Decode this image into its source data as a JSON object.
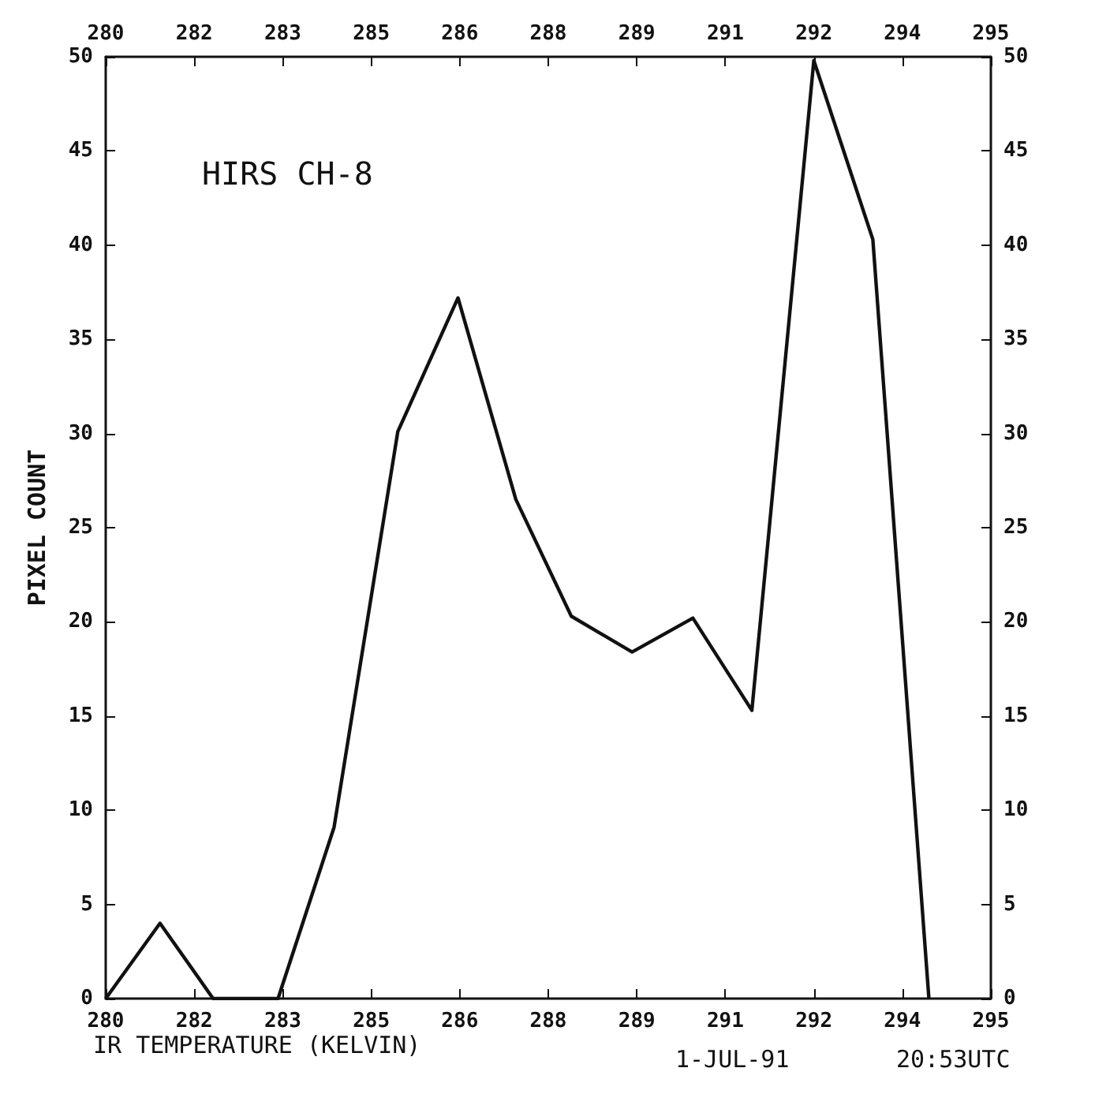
{
  "chart_data": {
    "type": "line",
    "xlabel": "IR TEMPERATURE (KELVIN)",
    "ylabel": "PIXEL COUNT",
    "annotations": [
      "HIRS CH-8",
      "1-JUL-91",
      "20:53UTC"
    ],
    "x": [
      280,
      280.92,
      281.82,
      282.92,
      283.87,
      284.95,
      285.97,
      286.95,
      287.89,
      288.92,
      289.95,
      290.95,
      292.0,
      293.0,
      293.95
    ],
    "series": [
      {
        "color": "#111111",
        "values": [
          0,
          4,
          0,
          0,
          9.1,
          30.1,
          37.2,
          26.5,
          20.3,
          18.4,
          20.2,
          15.3,
          49.8,
          40.3,
          0
        ]
      }
    ],
    "xlim": [
      280,
      295
    ],
    "xticks": [
      280,
      {
        "value": 281.5,
        "label": "282"
      },
      283,
      {
        "value": 284.5,
        "label": "285"
      },
      286,
      {
        "value": 287.5,
        "label": "288"
      },
      289,
      {
        "value": 290.5,
        "label": "291"
      },
      292,
      {
        "value": 293.5,
        "label": "294"
      },
      295
    ],
    "x2lim": [
      280,
      295
    ],
    "x2ticks": [
      280,
      {
        "value": 281.5,
        "label": "282"
      },
      283,
      {
        "value": 284.5,
        "label": "285"
      },
      286,
      {
        "value": 287.5,
        "label": "288"
      },
      289,
      {
        "value": 290.5,
        "label": "291"
      },
      292,
      {
        "value": 293.5,
        "label": "294"
      },
      295
    ],
    "ylim": [
      0,
      50
    ],
    "yticks": [
      0,
      5,
      10,
      15,
      20,
      25,
      30,
      35,
      40,
      45,
      50
    ],
    "y2lim": [
      0,
      50
    ],
    "y2ticks": [
      0,
      5,
      10,
      15,
      20,
      25,
      30,
      35,
      40,
      45,
      50
    ],
    "grid": false,
    "marker": "none",
    "line_style": "solid"
  }
}
